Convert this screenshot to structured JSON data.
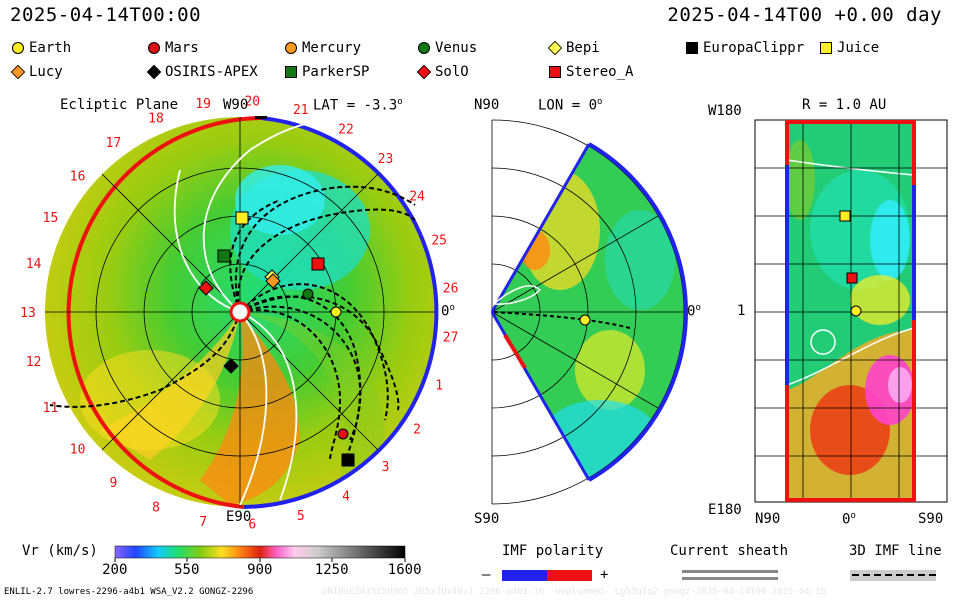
{
  "header": {
    "left": "2025-04-14T00:00",
    "right": "2025-04-14T00 +0.00 day"
  },
  "legend": [
    {
      "name": "Earth",
      "shape": "circle",
      "color": "#ffee22"
    },
    {
      "name": "Mars",
      "shape": "circle",
      "color": "#dd1111"
    },
    {
      "name": "Mercury",
      "shape": "circle",
      "color": "#ff9922"
    },
    {
      "name": "Venus",
      "shape": "circle",
      "color": "#117711"
    },
    {
      "name": "Bepi",
      "shape": "diamond",
      "color": "#ffff55"
    },
    {
      "name": "EuropaClippr",
      "shape": "square",
      "color": "#000000"
    },
    {
      "name": "Juice",
      "shape": "square",
      "color": "#ffee22"
    },
    {
      "name": "Lucy",
      "shape": "diamond",
      "color": "#ff9922"
    },
    {
      "name": "OSIRIS-APEX",
      "shape": "diamond",
      "color": "#000000"
    },
    {
      "name": "ParkerSP",
      "shape": "square",
      "color": "#117711"
    },
    {
      "name": "SolO",
      "shape": "diamond",
      "color": "#ee1111"
    },
    {
      "name": "Stereo_A",
      "shape": "square",
      "color": "#ee1111"
    }
  ],
  "panels": {
    "ecliptic": {
      "title": "Ecliptic Plane",
      "top": "W90",
      "bottom": "E90",
      "right": "0",
      "lat": "LAT = -3.3",
      "lat_sup": "o"
    },
    "meridional": {
      "title": "LON = 0",
      "title_sup": "o",
      "top": "N90",
      "bottom": "S90",
      "right": "0",
      "right_sup": "o"
    },
    "radial": {
      "title": "R = 1.0 AU",
      "top_left": "W180",
      "bottom_left": "E180",
      "mid_left": "1",
      "x_left": "N90",
      "x_mid": "0",
      "x_mid_sup": "o",
      "x_right": "S90"
    }
  },
  "carrington_ticks": [
    "19",
    "20",
    "21",
    "22",
    "23",
    "24",
    "25",
    "26",
    "27",
    "1",
    "2",
    "3",
    "4",
    "5",
    "6",
    "7",
    "8",
    "9",
    "10",
    "11",
    "12",
    "13",
    "14",
    "15",
    "16",
    "17",
    "18"
  ],
  "colorbar": {
    "label": "Vr (km/s)",
    "ticks": [
      "200",
      "550",
      "900",
      "1250",
      "1600"
    ]
  },
  "imf": {
    "label": "IMF polarity",
    "minus": "–",
    "plus": "+"
  },
  "sheath": {
    "label": "Current sheath"
  },
  "imfline": {
    "label": "3D IMF line"
  },
  "footer": {
    "left": "ENLIL-2.7 lowres-2296-a4b1 WSA_V2.2 GONGZ-2296",
    "right": "UNIQUE2415150905 2D5x3Dx40x1 2296-a4b1.16 -noplummed- Lg53q5q2 gongz-2025-04-14T00 2025-04-15"
  },
  "chart_data": [
    {
      "type": "heatmap",
      "title": "Ecliptic Plane",
      "description_axes": {
        "top": "W90",
        "bottom": "E90",
        "right": "0"
      },
      "bodies": [
        "Earth",
        "Mars",
        "Mercury",
        "Venus",
        "Bepi",
        "EuropaClippr",
        "Juice",
        "Lucy",
        "OSIRIS-APEX",
        "ParkerSP",
        "SolO",
        "Stereo_A"
      ],
      "colorscale": {
        "variable": "Vr (km/s)",
        "range": [
          200,
          1600
        ]
      }
    },
    {
      "type": "heatmap",
      "title": "LON = 0",
      "axes": {
        "top": "N90",
        "bottom": "S90",
        "right": "0"
      },
      "colorscale": {
        "variable": "Vr (km/s)",
        "range": [
          200,
          1600
        ]
      }
    },
    {
      "type": "heatmap",
      "title": "R = 1.0 AU",
      "axes": {
        "y": [
          "W180",
          "1",
          "E180"
        ],
        "x": [
          "N90",
          "0",
          "S90"
        ]
      },
      "colorscale": {
        "variable": "Vr (km/s)",
        "range": [
          200,
          1600
        ]
      }
    }
  ]
}
